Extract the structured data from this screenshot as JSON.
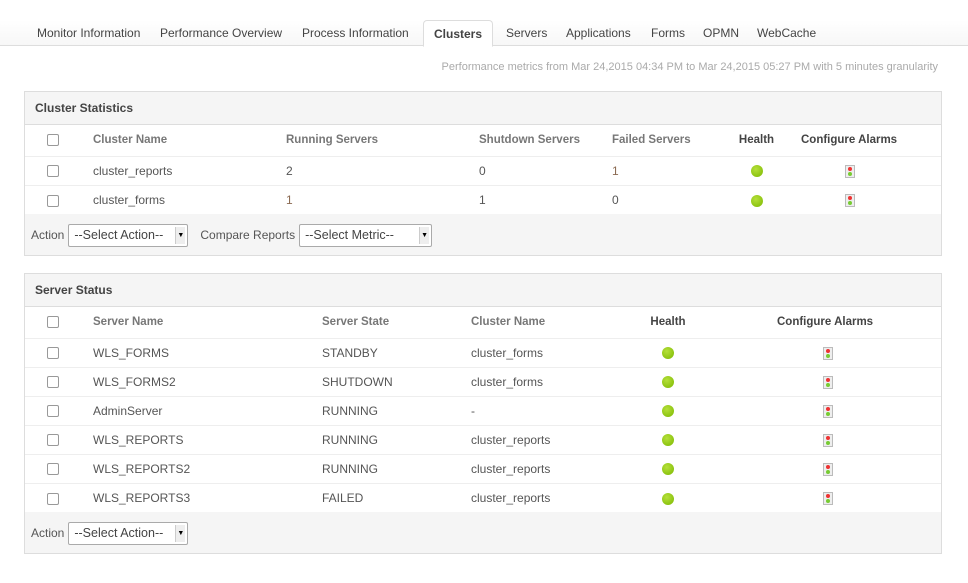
{
  "tabs": [
    "Monitor Information",
    "Performance Overview",
    "Process Information",
    "Clusters",
    "Servers",
    "Applications",
    "Forms",
    "OPMN",
    "WebCache"
  ],
  "active_tab": "Clusters",
  "info": "Performance metrics from Mar 24,2015 04:34 PM to Mar 24,2015 05:27 PM with 5 minutes granularity",
  "cluster_stats": {
    "title": "Cluster Statistics",
    "headers": [
      "Cluster Name",
      "Running Servers",
      "Shutdown Servers",
      "Failed Servers",
      "Health",
      "Configure Alarms"
    ],
    "rows": [
      {
        "name": "cluster_reports",
        "running": "2",
        "shutdown": "0",
        "failed": "1",
        "health": "green"
      },
      {
        "name": "cluster_forms",
        "running": "1",
        "shutdown": "1",
        "failed": "0",
        "health": "green"
      }
    ],
    "action_label": "Action",
    "action_select": "--Select Action--",
    "compare_label": "Compare Reports",
    "compare_select": "--Select Metric--"
  },
  "server_status": {
    "title": "Server Status",
    "headers": [
      "Server Name",
      "Server State",
      "Cluster Name",
      "Health",
      "Configure Alarms"
    ],
    "rows": [
      {
        "name": "WLS_FORMS",
        "state": "STANDBY",
        "cluster": "cluster_forms",
        "health": "green"
      },
      {
        "name": "WLS_FORMS2",
        "state": "SHUTDOWN",
        "cluster": "cluster_forms",
        "health": "green"
      },
      {
        "name": "AdminServer",
        "state": "RUNNING",
        "cluster": "-",
        "health": "green"
      },
      {
        "name": "WLS_REPORTS",
        "state": "RUNNING",
        "cluster": "cluster_reports",
        "health": "green"
      },
      {
        "name": "WLS_REPORTS2",
        "state": "RUNNING",
        "cluster": "cluster_reports",
        "health": "green"
      },
      {
        "name": "WLS_REPORTS3",
        "state": "FAILED",
        "cluster": "cluster_reports",
        "health": "green"
      }
    ],
    "action_label": "Action",
    "action_select": "--Select Action--"
  },
  "colors": {
    "health_green": "#7cb800"
  }
}
